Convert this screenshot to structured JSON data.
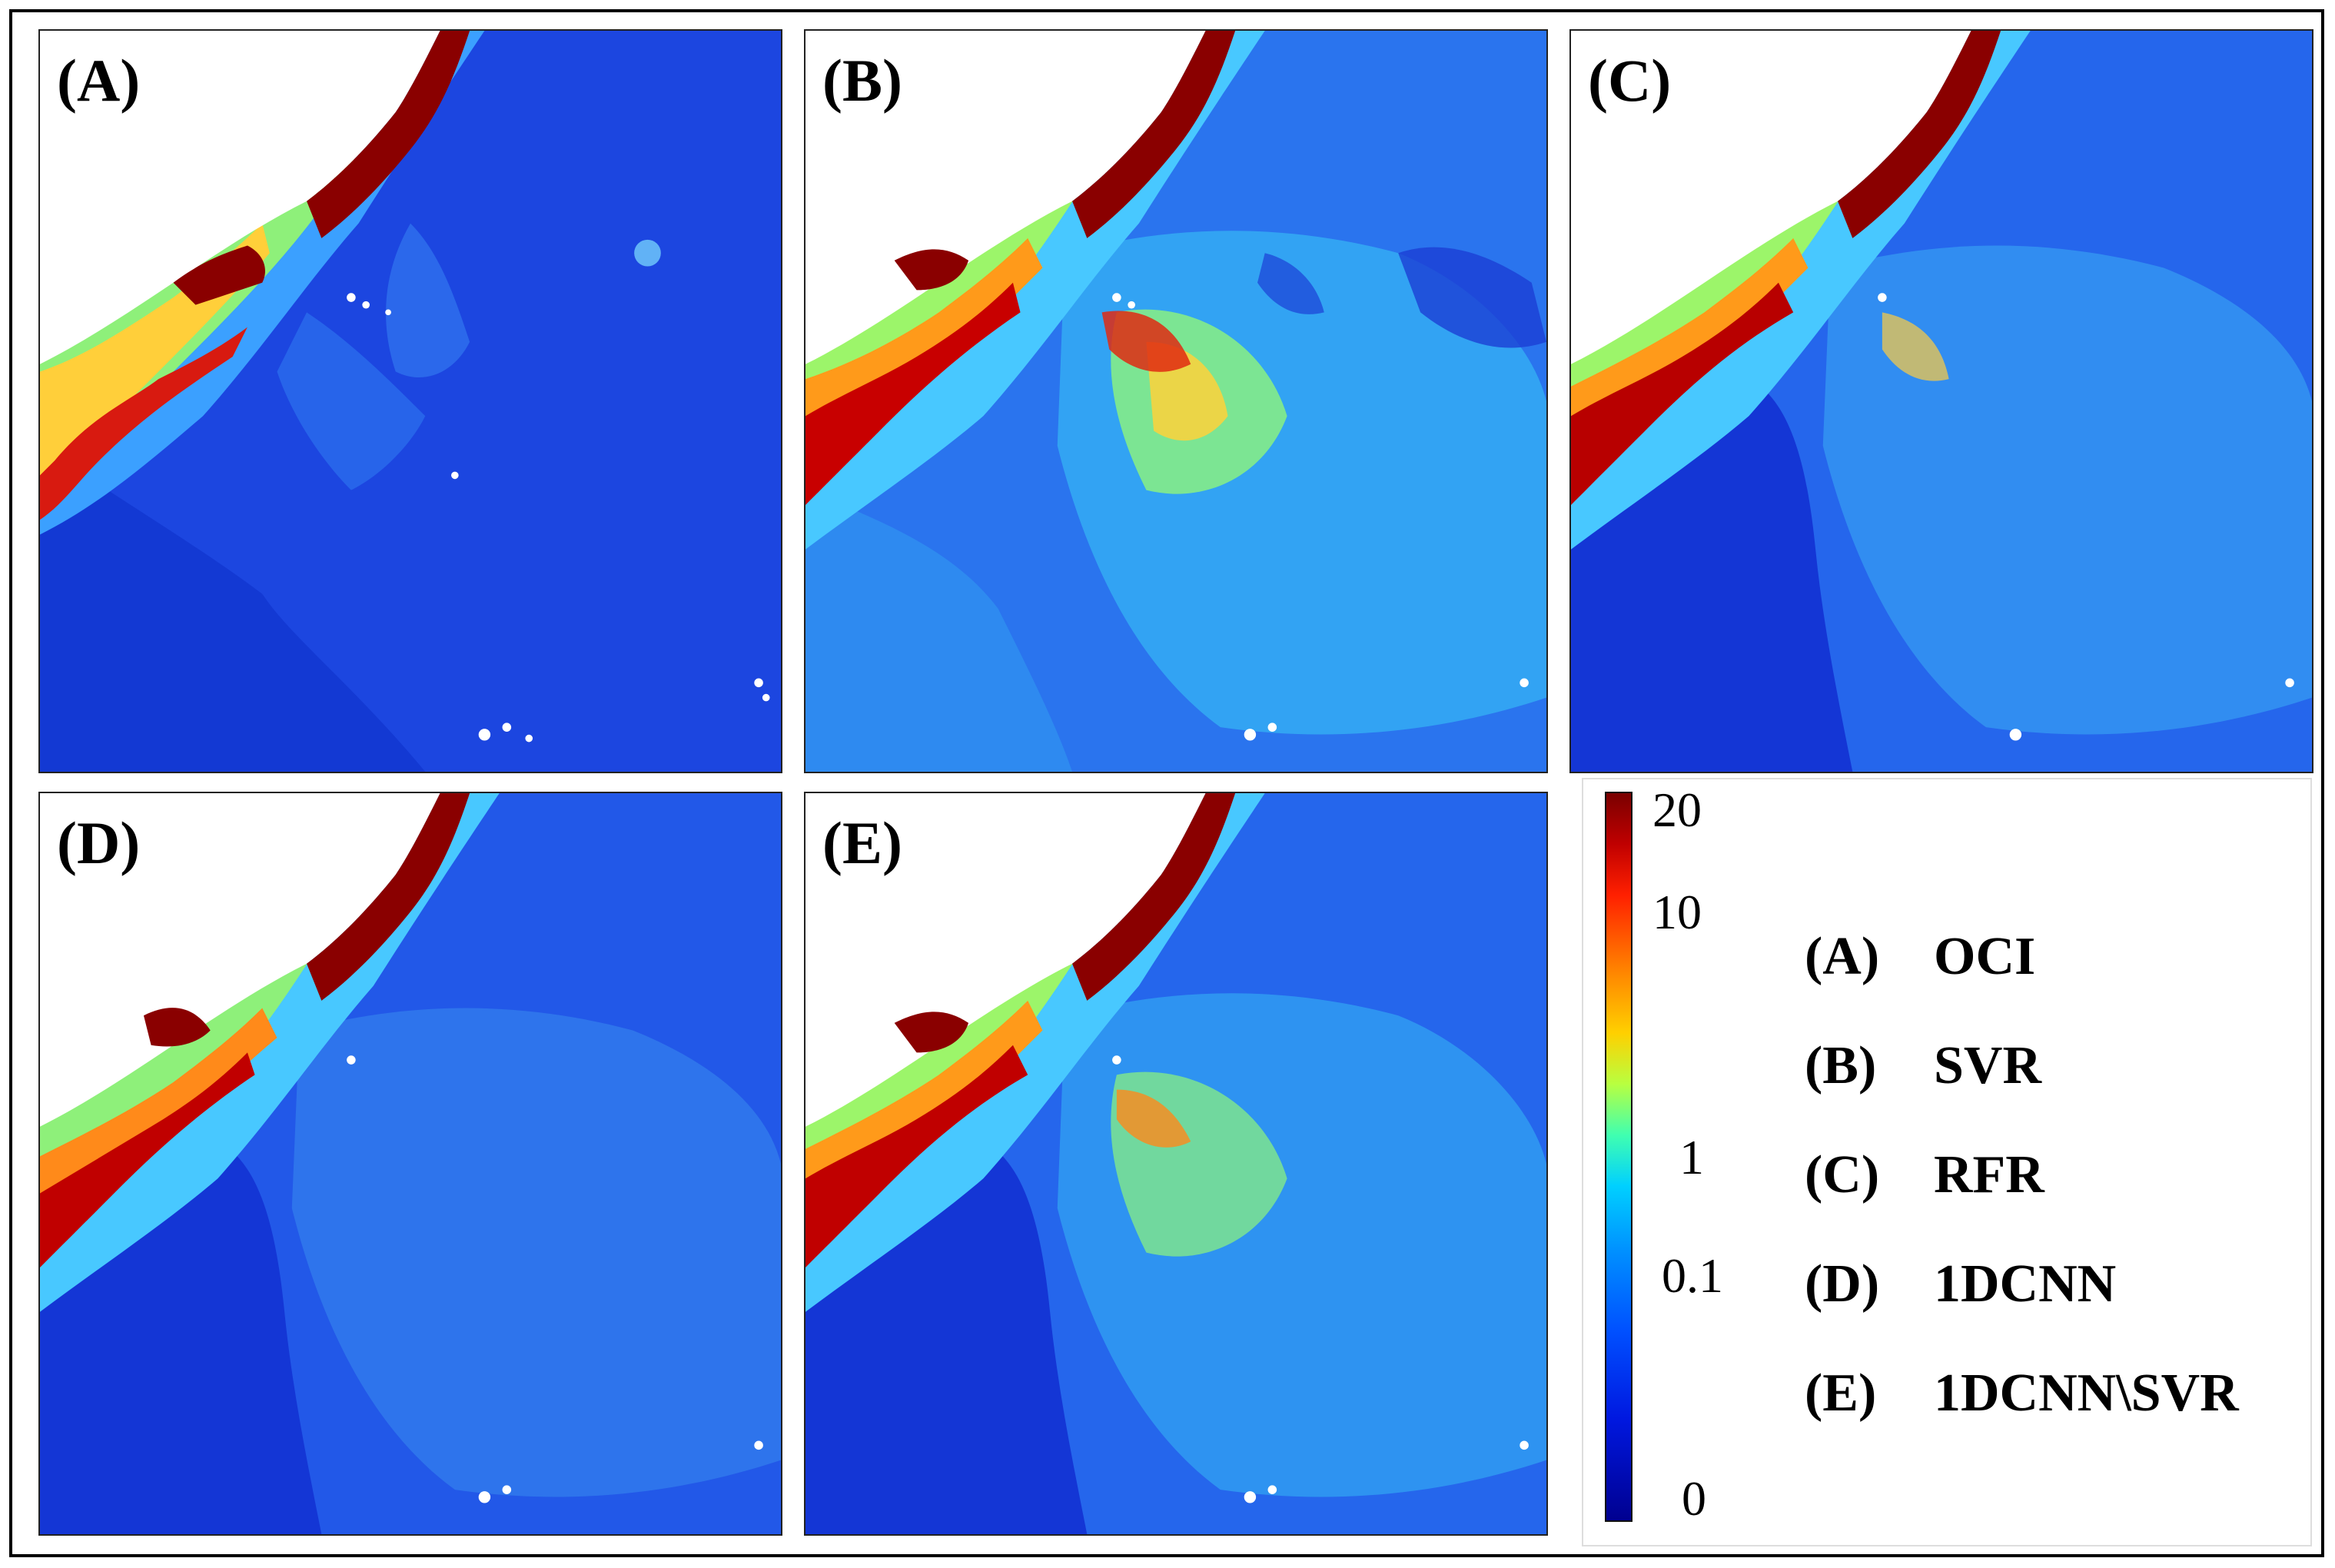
{
  "panels": [
    {
      "letter": "(A)"
    },
    {
      "letter": "(B)"
    },
    {
      "letter": "(C)"
    },
    {
      "letter": "(D)"
    },
    {
      "letter": "(E)"
    }
  ],
  "colorbar": {
    "ticks": [
      "20",
      "10",
      "1",
      "0.1",
      "0"
    ],
    "colors": [
      "#7a0000",
      "#ff2000",
      "#ffd000",
      "#40ffb0",
      "#00d0ff",
      "#0050ff",
      "#000090"
    ]
  },
  "legend": [
    {
      "key": "(A)",
      "label": "OCI"
    },
    {
      "key": "(B)",
      "label": "SVR"
    },
    {
      "key": "(C)",
      "label": "RFR"
    },
    {
      "key": "(D)",
      "label": "1DCNN"
    },
    {
      "key": "(E)",
      "label": "1DCNN\\SVR"
    }
  ]
}
